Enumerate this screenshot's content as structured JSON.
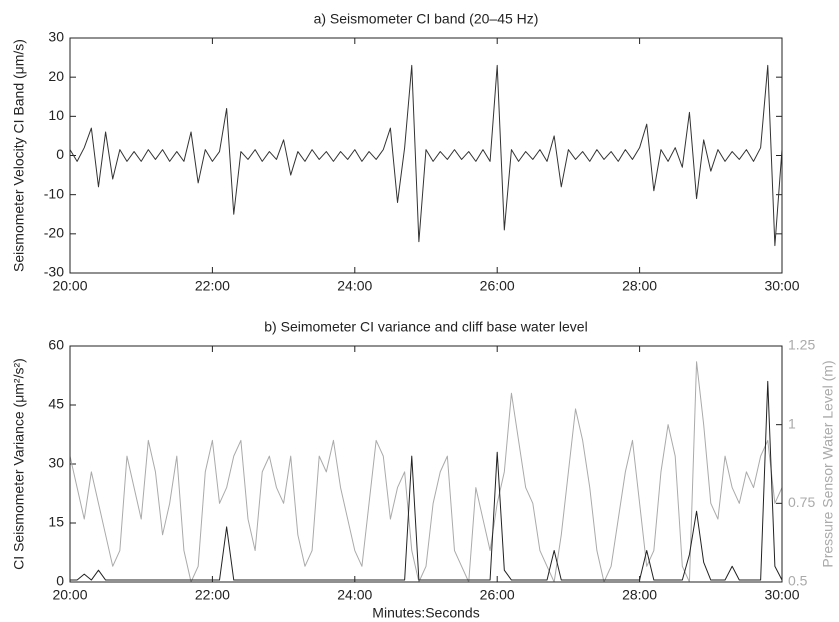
{
  "chart_data": [
    {
      "type": "line",
      "title": "a) Seismometer CI band (20–45 Hz)",
      "ylabel": "Seismometer Velocity CI Band (μm/s)",
      "x": [
        20,
        20.1,
        20.2,
        20.3,
        20.4,
        20.5,
        20.6,
        20.7,
        20.8,
        20.9,
        21,
        21.1,
        21.2,
        21.3,
        21.4,
        21.5,
        21.6,
        21.7,
        21.8,
        21.9,
        22,
        22.1,
        22.2,
        22.3,
        22.4,
        22.5,
        22.6,
        22.7,
        22.8,
        22.9,
        23,
        23.1,
        23.2,
        23.3,
        23.4,
        23.5,
        23.6,
        23.7,
        23.8,
        23.9,
        24,
        24.1,
        24.2,
        24.3,
        24.4,
        24.5,
        24.6,
        24.7,
        24.8,
        24.9,
        25,
        25.1,
        25.2,
        25.3,
        25.4,
        25.5,
        25.6,
        25.7,
        25.8,
        25.9,
        26,
        26.1,
        26.2,
        26.3,
        26.4,
        26.5,
        26.6,
        26.7,
        26.8,
        26.9,
        27,
        27.1,
        27.2,
        27.3,
        27.4,
        27.5,
        27.6,
        27.7,
        27.8,
        27.9,
        28,
        28.1,
        28.2,
        28.3,
        28.4,
        28.5,
        28.6,
        28.7,
        28.8,
        28.9,
        29,
        29.1,
        29.2,
        29.3,
        29.4,
        29.5,
        29.6,
        29.7,
        29.8,
        29.9,
        30
      ],
      "series": [
        {
          "color": "#333333",
          "values": [
            1.5,
            -1.5,
            2,
            7,
            -8,
            6,
            -6,
            1.5,
            -1.5,
            1,
            -1.5,
            1.5,
            -1,
            1.5,
            -1.5,
            1,
            -1.5,
            6,
            -7,
            1.5,
            -1.5,
            1,
            12,
            -15,
            1,
            -1,
            1.5,
            -1.5,
            1,
            -1,
            4,
            -5,
            1,
            -1.5,
            1.5,
            -1,
            1,
            -1.5,
            1,
            -1,
            1.5,
            -1.5,
            1,
            -1,
            1.5,
            7,
            -12,
            2,
            23,
            -22,
            1.5,
            -1.5,
            1,
            -1,
            1.5,
            -1,
            1,
            -1.5,
            1.5,
            -1.5,
            23,
            -19,
            1.5,
            -1.5,
            1,
            -1,
            1.5,
            -1.5,
            5,
            -8,
            1.5,
            -1,
            1,
            -1.5,
            1.5,
            -1,
            1,
            -1.5,
            1.5,
            -1,
            2,
            8,
            -9,
            1.5,
            -1.5,
            2,
            -3,
            11,
            -11,
            4,
            -4,
            1.5,
            -1.5,
            1,
            -1,
            1.5,
            -1.5,
            2,
            23,
            -23,
            1.5
          ]
        }
      ],
      "xlim": [
        20,
        30
      ],
      "xticks": [
        {
          "value": 20,
          "label": "20:00"
        },
        {
          "value": 22,
          "label": "22:00"
        },
        {
          "value": 24,
          "label": "24:00"
        },
        {
          "value": 26,
          "label": "26:00"
        },
        {
          "value": 28,
          "label": "28:00"
        },
        {
          "value": 30,
          "label": "30:00"
        }
      ],
      "ylim": [
        -30,
        30
      ],
      "yticks": [
        -30,
        -20,
        -10,
        0,
        10,
        20,
        30
      ]
    },
    {
      "type": "line",
      "title": "b) Seimometer CI variance and cliff base water level",
      "ylabel": "CI Seismometer Variance (μm²/s²)",
      "y2label": "Pressure Sensor Water Level (m)",
      "xlabel": "Minutes:Seconds",
      "x": [
        20,
        20.1,
        20.2,
        20.3,
        20.4,
        20.5,
        20.6,
        20.7,
        20.8,
        20.9,
        21,
        21.1,
        21.2,
        21.3,
        21.4,
        21.5,
        21.6,
        21.7,
        21.8,
        21.9,
        22,
        22.1,
        22.2,
        22.3,
        22.4,
        22.5,
        22.6,
        22.7,
        22.8,
        22.9,
        23,
        23.1,
        23.2,
        23.3,
        23.4,
        23.5,
        23.6,
        23.7,
        23.8,
        23.9,
        24,
        24.1,
        24.2,
        24.3,
        24.4,
        24.5,
        24.6,
        24.7,
        24.8,
        24.9,
        25,
        25.1,
        25.2,
        25.3,
        25.4,
        25.5,
        25.6,
        25.7,
        25.8,
        25.9,
        26,
        26.1,
        26.2,
        26.3,
        26.4,
        26.5,
        26.6,
        26.7,
        26.8,
        26.9,
        27,
        27.1,
        27.2,
        27.3,
        27.4,
        27.5,
        27.6,
        27.7,
        27.8,
        27.9,
        28,
        28.1,
        28.2,
        28.3,
        28.4,
        28.5,
        28.6,
        28.7,
        28.8,
        28.9,
        29,
        29.1,
        29.2,
        29.3,
        29.4,
        29.5,
        29.6,
        29.7,
        29.8,
        29.9,
        30
      ],
      "series": [
        {
          "color": "#aaaaaa",
          "axis": "y2",
          "values": [
            0.9,
            0.8,
            0.7,
            0.85,
            0.75,
            0.65,
            0.55,
            0.6,
            0.9,
            0.8,
            0.7,
            0.95,
            0.85,
            0.65,
            0.75,
            0.9,
            0.6,
            0.5,
            0.55,
            0.85,
            0.95,
            0.75,
            0.8,
            0.9,
            0.95,
            0.7,
            0.6,
            0.85,
            0.9,
            0.8,
            0.75,
            0.9,
            0.65,
            0.55,
            0.6,
            0.9,
            0.85,
            0.95,
            0.8,
            0.7,
            0.6,
            0.55,
            0.75,
            0.95,
            0.9,
            0.7,
            0.8,
            0.85,
            0.6,
            0.5,
            0.55,
            0.75,
            0.85,
            0.9,
            0.6,
            0.55,
            0.5,
            0.8,
            0.7,
            0.6,
            0.75,
            0.85,
            1.1,
            0.95,
            0.8,
            0.75,
            0.6,
            0.55,
            0.5,
            0.65,
            0.85,
            1.05,
            0.95,
            0.8,
            0.6,
            0.5,
            0.55,
            0.7,
            0.85,
            0.95,
            0.75,
            0.55,
            0.6,
            0.85,
            1.0,
            0.9,
            0.55,
            0.5,
            1.2,
            1.0,
            0.75,
            0.7,
            0.9,
            0.8,
            0.75,
            0.85,
            0.8,
            0.9,
            0.95,
            0.75,
            0.8
          ]
        },
        {
          "color": "#222222",
          "values": [
            0.5,
            0.5,
            2,
            0.5,
            3,
            0.5,
            0.5,
            0.5,
            0.5,
            0.5,
            0.5,
            0.5,
            0.5,
            0.5,
            0.5,
            0.5,
            0.5,
            0.5,
            0.5,
            0.5,
            0.5,
            0.5,
            14,
            0.5,
            0.5,
            0.5,
            0.5,
            0.5,
            0.5,
            0.5,
            0.5,
            0.5,
            0.5,
            0.5,
            0.5,
            0.5,
            0.5,
            0.5,
            0.5,
            0.5,
            0.5,
            0.5,
            0.5,
            0.5,
            0.5,
            0.5,
            0.5,
            0.5,
            32,
            0.5,
            0.5,
            0.5,
            0.5,
            0.5,
            0.5,
            0.5,
            0.5,
            0.5,
            0.5,
            0.5,
            33,
            3,
            0.5,
            0.5,
            0.5,
            0.5,
            0.5,
            0.5,
            8,
            0.5,
            0.5,
            0.5,
            0.5,
            0.5,
            0.5,
            0.5,
            0.5,
            0.5,
            0.5,
            0.5,
            0.5,
            8,
            0.5,
            0.5,
            0.5,
            0.5,
            0.5,
            7,
            18,
            5,
            0.5,
            0.5,
            0.5,
            4,
            0.5,
            0.5,
            0.5,
            0.5,
            51,
            4,
            0.5
          ]
        }
      ],
      "xlim": [
        20,
        30
      ],
      "xticks": [
        {
          "value": 20,
          "label": "20:00"
        },
        {
          "value": 22,
          "label": "22:00"
        },
        {
          "value": 24,
          "label": "24:00"
        },
        {
          "value": 26,
          "label": "26:00"
        },
        {
          "value": 28,
          "label": "28:00"
        },
        {
          "value": 30,
          "label": "30:00"
        }
      ],
      "ylim": [
        0,
        60
      ],
      "yticks": [
        0,
        15,
        30,
        45,
        60
      ],
      "y2lim": [
        0.5,
        1.25
      ],
      "y2ticks": [
        0.5,
        0.75,
        1,
        1.25
      ]
    }
  ]
}
